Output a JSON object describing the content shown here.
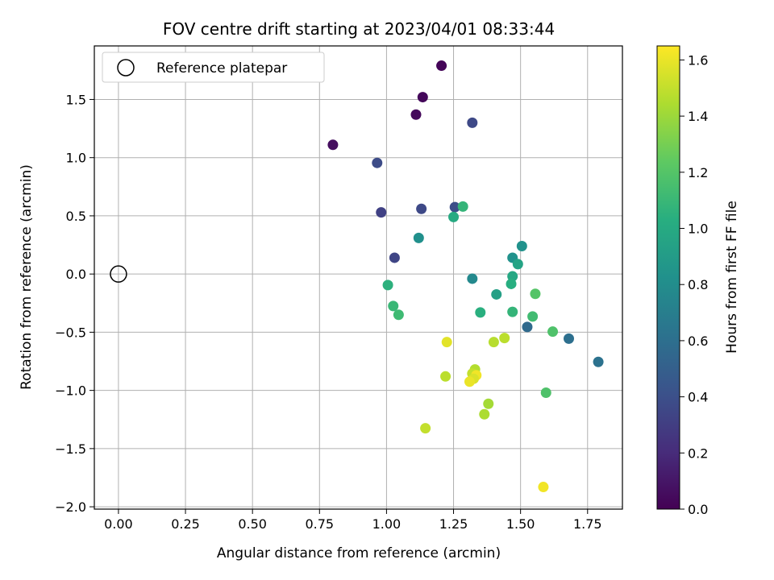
{
  "chart_data": {
    "type": "scatter",
    "title": "FOV centre drift starting at 2023/04/01 08:33:44",
    "xlabel": "Angular distance from reference (arcmin)",
    "ylabel": "Rotation from reference (arcmin)",
    "colorbar_label": "Hours from first FF file",
    "xlim": [
      -0.09,
      1.88
    ],
    "ylim": [
      -2.02,
      1.96
    ],
    "x_ticks": [
      "0.00",
      "0.25",
      "0.50",
      "0.75",
      "1.00",
      "1.25",
      "1.50",
      "1.75"
    ],
    "x_tick_values": [
      0.0,
      0.25,
      0.5,
      0.75,
      1.0,
      1.25,
      1.5,
      1.75
    ],
    "y_ticks": [
      "−2.0",
      "−1.5",
      "−1.0",
      "−0.5",
      "0.0",
      "0.5",
      "1.0",
      "1.5"
    ],
    "y_tick_values": [
      -2.0,
      -1.5,
      -1.0,
      -0.5,
      0.0,
      0.5,
      1.0,
      1.5
    ],
    "colorbar_ticks": [
      "0.0",
      "0.2",
      "0.4",
      "0.6",
      "0.8",
      "1.0",
      "1.2",
      "1.4",
      "1.6"
    ],
    "colorbar_tick_values": [
      0.0,
      0.2,
      0.4,
      0.6,
      0.8,
      1.0,
      1.2,
      1.4,
      1.6
    ],
    "colorbar_range": [
      0.0,
      1.65
    ],
    "colormap": "viridis",
    "grid": true,
    "legend": {
      "position": "top-left",
      "entries": [
        "Reference platepar"
      ]
    },
    "reference_point": {
      "x": 0.0,
      "y": 0.0,
      "label": "Reference platepar"
    },
    "points": [
      {
        "x": 1.205,
        "y": 1.79,
        "hours": 0.02
      },
      {
        "x": 1.135,
        "y": 1.52,
        "hours": 0.03
      },
      {
        "x": 1.11,
        "y": 1.37,
        "hours": 0.04
      },
      {
        "x": 0.8,
        "y": 1.11,
        "hours": 0.06
      },
      {
        "x": 1.32,
        "y": 1.3,
        "hours": 0.36
      },
      {
        "x": 0.965,
        "y": 0.955,
        "hours": 0.38
      },
      {
        "x": 0.98,
        "y": 0.53,
        "hours": 0.32
      },
      {
        "x": 1.13,
        "y": 0.56,
        "hours": 0.36
      },
      {
        "x": 1.255,
        "y": 0.575,
        "hours": 0.39
      },
      {
        "x": 1.285,
        "y": 0.58,
        "hours": 1.08
      },
      {
        "x": 1.25,
        "y": 0.49,
        "hours": 1.0
      },
      {
        "x": 1.12,
        "y": 0.31,
        "hours": 0.82
      },
      {
        "x": 1.03,
        "y": 0.14,
        "hours": 0.34
      },
      {
        "x": 1.505,
        "y": 0.24,
        "hours": 0.83
      },
      {
        "x": 1.47,
        "y": 0.14,
        "hours": 0.83
      },
      {
        "x": 1.49,
        "y": 0.085,
        "hours": 0.95
      },
      {
        "x": 1.32,
        "y": -0.04,
        "hours": 0.77
      },
      {
        "x": 1.47,
        "y": -0.02,
        "hours": 0.98
      },
      {
        "x": 1.465,
        "y": -0.085,
        "hours": 1.03
      },
      {
        "x": 1.005,
        "y": -0.095,
        "hours": 1.05
      },
      {
        "x": 1.41,
        "y": -0.175,
        "hours": 0.93
      },
      {
        "x": 1.555,
        "y": -0.17,
        "hours": 1.2
      },
      {
        "x": 1.025,
        "y": -0.275,
        "hours": 1.1
      },
      {
        "x": 1.045,
        "y": -0.35,
        "hours": 1.12
      },
      {
        "x": 1.35,
        "y": -0.33,
        "hours": 1.04
      },
      {
        "x": 1.47,
        "y": -0.325,
        "hours": 1.08
      },
      {
        "x": 1.545,
        "y": -0.365,
        "hours": 1.13
      },
      {
        "x": 1.525,
        "y": -0.455,
        "hours": 0.57
      },
      {
        "x": 1.62,
        "y": -0.495,
        "hours": 1.18
      },
      {
        "x": 1.68,
        "y": -0.555,
        "hours": 0.6
      },
      {
        "x": 1.79,
        "y": -0.755,
        "hours": 0.62
      },
      {
        "x": 1.44,
        "y": -0.55,
        "hours": 1.48
      },
      {
        "x": 1.4,
        "y": -0.585,
        "hours": 1.47
      },
      {
        "x": 1.225,
        "y": -0.585,
        "hours": 1.58
      },
      {
        "x": 1.33,
        "y": -0.82,
        "hours": 1.46
      },
      {
        "x": 1.32,
        "y": -0.855,
        "hours": 1.5
      },
      {
        "x": 1.335,
        "y": -0.87,
        "hours": 1.62
      },
      {
        "x": 1.325,
        "y": -0.9,
        "hours": 1.56
      },
      {
        "x": 1.31,
        "y": -0.925,
        "hours": 1.6
      },
      {
        "x": 1.22,
        "y": -0.88,
        "hours": 1.48
      },
      {
        "x": 1.595,
        "y": -1.02,
        "hours": 1.18
      },
      {
        "x": 1.38,
        "y": -1.115,
        "hours": 1.42
      },
      {
        "x": 1.365,
        "y": -1.205,
        "hours": 1.44
      },
      {
        "x": 1.145,
        "y": -1.325,
        "hours": 1.5
      },
      {
        "x": 1.585,
        "y": -1.83,
        "hours": 1.62
      }
    ]
  }
}
